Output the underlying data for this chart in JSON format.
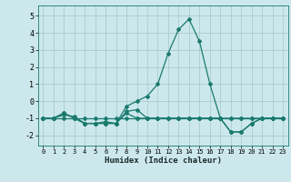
{
  "xlabel": "Humidex (Indice chaleur)",
  "bg_color": "#cce8ec",
  "grid_color": "#aacccc",
  "line_color": "#1a7a6e",
  "xlim": [
    -0.5,
    23.5
  ],
  "ylim": [
    -2.6,
    5.6
  ],
  "yticks": [
    -2,
    -1,
    0,
    1,
    2,
    3,
    4,
    5
  ],
  "xticks": [
    0,
    1,
    2,
    3,
    4,
    5,
    6,
    7,
    8,
    9,
    10,
    11,
    12,
    13,
    14,
    15,
    16,
    17,
    18,
    19,
    20,
    21,
    22,
    23
  ],
  "series": [
    {
      "x": [
        0,
        1,
        2,
        3,
        4,
        5,
        6,
        7,
        8,
        9,
        10,
        11,
        12,
        13,
        14,
        15,
        16,
        17,
        18,
        19,
        20,
        21,
        22,
        23
      ],
      "y": [
        -1,
        -1,
        -0.7,
        -1,
        -1.3,
        -1.3,
        -1.3,
        -1.3,
        -0.7,
        -1,
        -1,
        -1,
        -1,
        -1,
        -1,
        -1,
        -1,
        -1,
        -1.8,
        -1.8,
        -1.3,
        -1,
        -1,
        -1
      ]
    },
    {
      "x": [
        0,
        1,
        2,
        3,
        4,
        5,
        6,
        7,
        8,
        9,
        10,
        11,
        12,
        13,
        14,
        15,
        16,
        17,
        18,
        19,
        20,
        21,
        22,
        23
      ],
      "y": [
        -1,
        -1,
        -0.7,
        -1,
        -1.3,
        -1.3,
        -1.3,
        -1.3,
        -0.6,
        -0.5,
        -1,
        -1,
        -1,
        -1,
        -1,
        -1,
        -1,
        -1,
        -1,
        -1,
        -1,
        -1,
        -1,
        -1
      ]
    },
    {
      "x": [
        0,
        1,
        2,
        3,
        4,
        5,
        6,
        7,
        8,
        9,
        10,
        11,
        12,
        13,
        14,
        15,
        16,
        17,
        18,
        19,
        20,
        21,
        22,
        23
      ],
      "y": [
        -1,
        -1,
        -0.8,
        -0.9,
        -1.3,
        -1.3,
        -1.2,
        -1.3,
        -0.3,
        0.0,
        0.3,
        1.0,
        2.8,
        4.2,
        4.8,
        3.5,
        1.0,
        -1.0,
        -1.8,
        -1.8,
        -1.3,
        -1,
        -1,
        -1
      ]
    },
    {
      "x": [
        0,
        1,
        2,
        3,
        4,
        5,
        6,
        7,
        8,
        9,
        10,
        11,
        12,
        13,
        14,
        15,
        16,
        17,
        18,
        19,
        20,
        21,
        22,
        23
      ],
      "y": [
        -1,
        -1,
        -1,
        -1,
        -1,
        -1,
        -1,
        -1,
        -1,
        -1,
        -1,
        -1,
        -1,
        -1,
        -1,
        -1,
        -1,
        -1,
        -1,
        -1,
        -1,
        -1,
        -1,
        -1
      ]
    }
  ]
}
